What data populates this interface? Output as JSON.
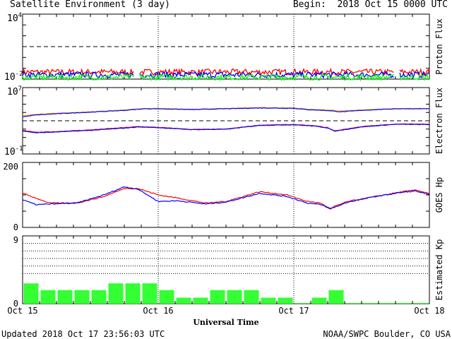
{
  "header": {
    "title": "Satellite Environment (3 day)",
    "begin": "Begin:  2018 Oct 15 0000 UTC"
  },
  "footer": {
    "updated": "Updated 2018 Oct 17 23:56:03 UTC",
    "credit": "NOAA/SWPC Boulder, CO USA"
  },
  "x_axis": {
    "title": "Universal Time",
    "ticks": [
      "Oct 15",
      "Oct 16",
      "Oct 17",
      "Oct 18"
    ],
    "range_days": [
      0,
      3
    ]
  },
  "colors": {
    "red": "#ff0000",
    "blue": "#0000ff",
    "green": "#00ff00",
    "orange": "#ffa500",
    "kp_bar": "#33ff33",
    "frame": "#000000"
  },
  "chart_data": [
    {
      "type": "line",
      "panel": "proton",
      "ylabel": "Proton Flux",
      "yscale": "log",
      "ylim": [
        0.01,
        10000
      ],
      "y_tick_labels": [
        {
          "mantissa": "10",
          "exp": "4"
        },
        {
          "mantissa": "10",
          "exp": "-2"
        }
      ],
      "threshold": 10,
      "series": [
        {
          "color": "red",
          "level": 0.045
        },
        {
          "color": "blue",
          "level": 0.025
        },
        {
          "color": "green",
          "level": 0.015
        }
      ],
      "gap_days": [
        [
          0.82,
          0.86
        ],
        [
          2.74,
          2.78
        ]
      ]
    },
    {
      "type": "line",
      "panel": "electron",
      "ylabel": "Electron Flux",
      "yscale": "log",
      "ylim": [
        0.1,
        10000000
      ],
      "y_tick_labels": [
        {
          "mantissa": "10",
          "exp": "7"
        },
        {
          "mantissa": "10",
          "exp": "-1"
        }
      ],
      "threshold": 1000,
      "series": [
        {
          "color": "orange",
          "name": "",
          "x": [
            0,
            0.1,
            0.25,
            0.5,
            0.75,
            0.9,
            1.0,
            1.25,
            1.5,
            1.75,
            2.0,
            2.1,
            2.25,
            2.35,
            2.5,
            2.75,
            3.0
          ],
          "y": [
            4000,
            6000,
            8000,
            12000,
            20000,
            30000,
            30000,
            25000,
            30000,
            40000,
            35000,
            25000,
            20000,
            15000,
            20000,
            30000,
            30000
          ]
        },
        {
          "color": "blue",
          "name": "",
          "x": [
            0,
            0.1,
            0.25,
            0.5,
            0.75,
            0.9,
            1.0,
            1.25,
            1.5,
            1.75,
            2.0,
            2.1,
            2.25,
            2.35,
            2.5,
            2.75,
            3.0
          ],
          "y": [
            3000,
            5000,
            7000,
            11000,
            18000,
            28000,
            28000,
            22000,
            28000,
            35000,
            32000,
            22000,
            17000,
            12000,
            18000,
            28000,
            28000
          ]
        },
        {
          "color": "red",
          "name": "",
          "x": [
            0,
            0.1,
            0.25,
            0.5,
            0.75,
            0.85,
            1.0,
            1.25,
            1.5,
            1.75,
            2.0,
            2.15,
            2.25,
            2.3,
            2.5,
            2.75,
            3.0
          ],
          "y": [
            70,
            40,
            50,
            80,
            150,
            200,
            160,
            90,
            100,
            300,
            350,
            250,
            150,
            60,
            200,
            400,
            400
          ]
        },
        {
          "color": "blue",
          "name": "",
          "x": [
            0,
            0.1,
            0.25,
            0.5,
            0.75,
            0.85,
            1.0,
            1.25,
            1.5,
            1.75,
            2.0,
            2.15,
            2.25,
            2.3,
            2.5,
            2.75,
            3.0
          ],
          "y": [
            60,
            35,
            45,
            70,
            130,
            180,
            150,
            85,
            95,
            280,
            330,
            230,
            140,
            55,
            180,
            380,
            350
          ]
        }
      ]
    },
    {
      "type": "line",
      "panel": "goes_hp",
      "ylabel": "GOES Hp",
      "ylim": [
        0,
        200
      ],
      "y_tick_labels": [
        "200",
        "0"
      ],
      "series": [
        {
          "color": "red",
          "name": "",
          "x": [
            0,
            0.1,
            0.2,
            0.4,
            0.6,
            0.75,
            0.85,
            1.0,
            1.15,
            1.35,
            1.5,
            1.75,
            1.95,
            2.1,
            2.2,
            2.27,
            2.3,
            2.4,
            2.6,
            2.8,
            2.9,
            3.0
          ],
          "y": [
            105,
            90,
            75,
            75,
            95,
            120,
            120,
            100,
            90,
            75,
            80,
            110,
            100,
            80,
            75,
            55,
            65,
            80,
            95,
            110,
            115,
            105
          ]
        },
        {
          "color": "blue",
          "name": "",
          "x": [
            0,
            0.1,
            0.2,
            0.4,
            0.6,
            0.75,
            0.85,
            1.0,
            1.15,
            1.35,
            1.5,
            1.75,
            1.95,
            2.1,
            2.2,
            2.27,
            2.3,
            2.4,
            2.6,
            2.8,
            2.9,
            3.0
          ],
          "y": [
            85,
            70,
            72,
            75,
            100,
            125,
            118,
            80,
            82,
            72,
            78,
            105,
            95,
            75,
            70,
            58,
            62,
            78,
            95,
            108,
            112,
            100
          ]
        }
      ]
    },
    {
      "type": "bar",
      "panel": "kp",
      "ylabel": "Estimated Kp",
      "ylim": [
        0,
        9
      ],
      "y_tick_labels": [
        "9",
        "0"
      ],
      "dotted_levels": [
        4,
        5,
        6,
        7,
        8
      ],
      "bar_hours": 3,
      "values": [
        2.7,
        1.8,
        1.8,
        1.8,
        1.8,
        2.7,
        2.7,
        2.7,
        1.8,
        0.8,
        0.8,
        1.8,
        1.8,
        1.8,
        0.8,
        0.8,
        0.1,
        0.8,
        1.8,
        0.1,
        0.1,
        0.1,
        0.1,
        0.1
      ]
    }
  ]
}
